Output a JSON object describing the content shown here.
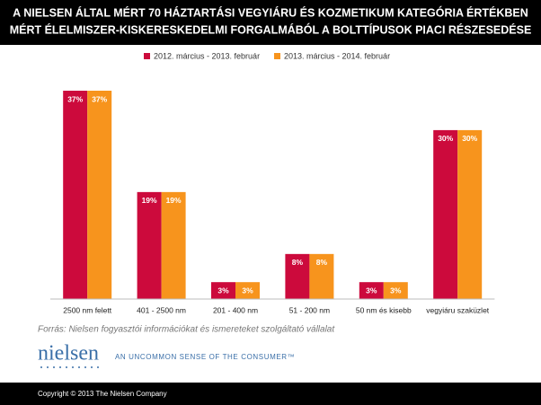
{
  "chart_data": {
    "type": "bar",
    "title": [
      "A NIELSEN ÁLTAL MÉRT 70 HÁZTARTÁSI VEGYIÁRU ÉS KOZMETIKUM KATEGÓRIA ÉRTÉKBEN",
      "MÉRT ÉLELMISZER-KISKERESKEDELMI FORGALMÁBÓL A BOLTTÍPUSOK PIACI RÉSZESEDÉSE"
    ],
    "categories": [
      "2500 nm felett",
      "401 - 2500 nm",
      "201 - 400 nm",
      "51 - 200 nm",
      "50 nm és kisebb",
      "vegyiáru szaküzlet"
    ],
    "series": [
      {
        "name": "2012. március - 2013. február",
        "color": "#cc0a3c",
        "values": [
          37,
          19,
          3,
          8,
          3,
          30
        ],
        "value_labels": [
          "37%",
          "19%",
          "3%",
          "8%",
          "3%",
          "30%"
        ]
      },
      {
        "name": "2013. március - 2014. február",
        "color": "#f7941d",
        "values": [
          37,
          19,
          3,
          8,
          3,
          30
        ],
        "value_labels": [
          "37%",
          "19%",
          "3%",
          "8%",
          "3%",
          "30%"
        ]
      }
    ],
    "source": "Forrás: Nielsen fogyasztói információkat és ismereteket szolgáltató vállalat"
  },
  "branding": {
    "logo": "nielsen",
    "tagline": "AN UNCOMMON SENSE OF THE CONSUMER™",
    "copyright": "Copyright © 2013  The Nielsen Company"
  }
}
